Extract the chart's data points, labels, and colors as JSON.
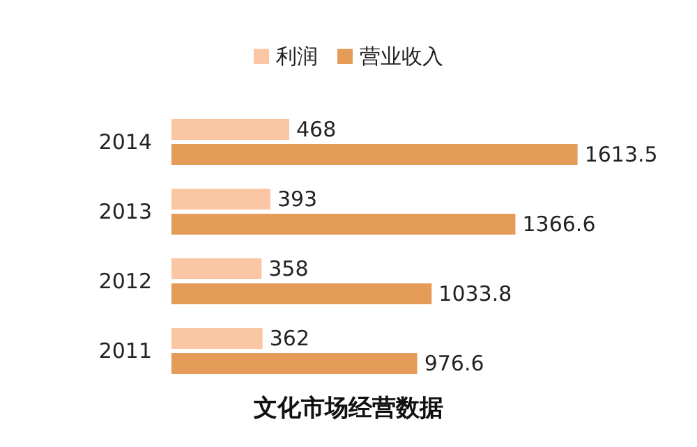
{
  "chart_data": {
    "type": "bar",
    "orientation": "horizontal",
    "title": "文化市场经营数据",
    "categories": [
      "2014",
      "2013",
      "2012",
      "2011"
    ],
    "series": [
      {
        "name": "利润",
        "color": "#fbc6a4",
        "values": [
          468,
          393,
          358,
          362
        ]
      },
      {
        "name": "营业收入",
        "color": "#e59c58",
        "values": [
          1613.5,
          1366.6,
          1033.8,
          976.6
        ]
      }
    ],
    "data_labels": true,
    "legend": "top"
  }
}
